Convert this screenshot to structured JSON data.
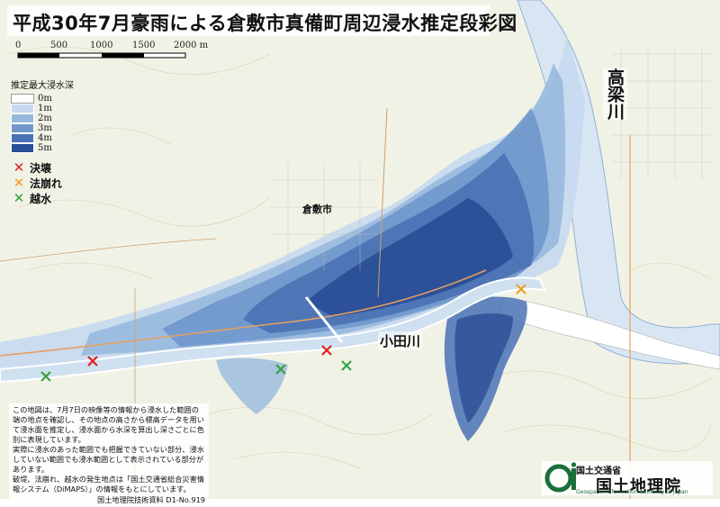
{
  "title": "平成30年7月豪雨による倉敷市真備町周辺浸水推定段彩図",
  "scale_bar": {
    "labels": [
      "0",
      "500",
      "1000",
      "1500",
      "2000 m"
    ]
  },
  "legend": {
    "title": "推定最大浸水深",
    "items": [
      {
        "label": "0m",
        "color": "#ffffff"
      },
      {
        "label": "1m",
        "color": "#c6d9f0"
      },
      {
        "label": "2m",
        "color": "#98b9de"
      },
      {
        "label": "3m",
        "color": "#6f97cc"
      },
      {
        "label": "4m",
        "color": "#4a72b5"
      },
      {
        "label": "5m",
        "color": "#2a4e96"
      }
    ],
    "markers": [
      {
        "label": "決壊",
        "color": "#e02020"
      },
      {
        "label": "法崩れ",
        "color": "#f0a020"
      },
      {
        "label": "越水",
        "color": "#3aa040"
      }
    ]
  },
  "places": {
    "takahashi_river": "高梁川",
    "oda_river": "小田川",
    "kurashiki_city": "倉敷市"
  },
  "note": {
    "paragraphs": [
      "この地図は、7月7日の映像等の情報から浸水した範囲の端の地点を確認し、その地点の高さから標高データを用いて浸水面を推定し、浸水面から水深を算出し深さごとに色別に表現しています。",
      "実際に浸水のあった範囲でも把握できていない部分、浸水していない範囲でも浸水範囲として表示されている部分があります。",
      "破堤、法崩れ、越水の発生地点は「国土交通省総合災害情報システム（DiMAPS）」の情報をもとにしています。"
    ],
    "source": "国土地理院技術資料 D1-No.919"
  },
  "agency": {
    "ministry": "国土交通省",
    "name": "国土地理院",
    "english": "Geospatial Information Authority of Japan"
  },
  "markers_on_map": [
    {
      "type": "決壊",
      "count": 2
    },
    {
      "type": "法崩れ",
      "count": 1
    },
    {
      "type": "越水",
      "count": 3
    }
  ]
}
